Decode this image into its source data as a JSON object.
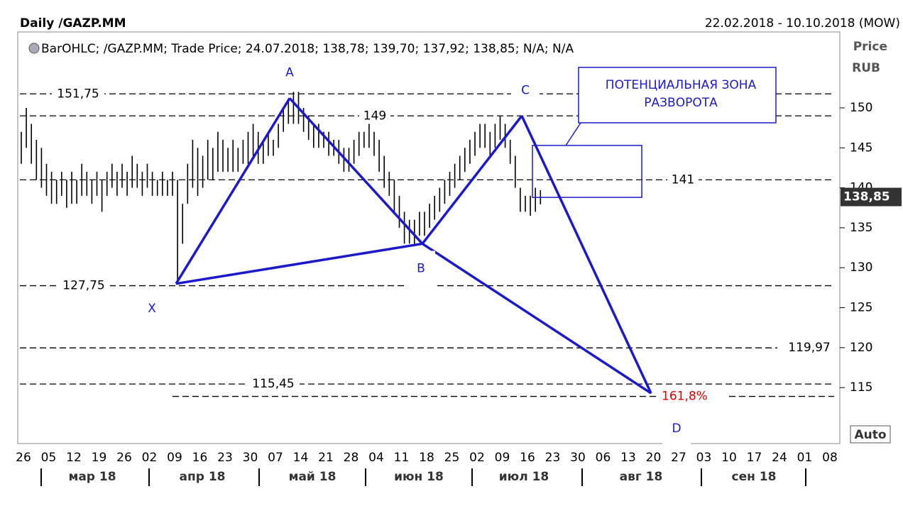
{
  "header": {
    "title": "Daily /GAZP.MM",
    "range": "22.02.2018 - 10.10.2018 (MOW)",
    "legend": "BarOHLC; /GAZP.MM; Trade Price; 24.07.2018; 138,78; 139,70; 137,92; 138,85; N/A; N/A",
    "axis_title": "Price",
    "axis_unit": "RUB",
    "auto": "Auto"
  },
  "chart_data": {
    "type": "ohlc",
    "color": "#000000",
    "highs": [
      147,
      150,
      148,
      146,
      145,
      143,
      142,
      141,
      142,
      141,
      142,
      141,
      143,
      142,
      141,
      142,
      141,
      142,
      143,
      142,
      143,
      142,
      144,
      143,
      142,
      143,
      142,
      141,
      142,
      141,
      142,
      141,
      138,
      143,
      146,
      145,
      144,
      146,
      145,
      147,
      146,
      145,
      146,
      145,
      146,
      147,
      148,
      147,
      146,
      147,
      146,
      148,
      150,
      151,
      152,
      152,
      150,
      149,
      148,
      148,
      147,
      147,
      146,
      146,
      145,
      145,
      146,
      147,
      147,
      148,
      147,
      146,
      144,
      142,
      141,
      139,
      137,
      136,
      136,
      137,
      137,
      138,
      139,
      140,
      141,
      142,
      143,
      144,
      145,
      146,
      147,
      148,
      148,
      147,
      148,
      149,
      148,
      146,
      144,
      140,
      139,
      139,
      140,
      139.7
    ],
    "lows": [
      143,
      145,
      143,
      141,
      140,
      139,
      138,
      138,
      139,
      137.5,
      138,
      138,
      139,
      139,
      138,
      139,
      137,
      139,
      140,
      139,
      140,
      139,
      140,
      140,
      139,
      140,
      139,
      139,
      139,
      139,
      139,
      128,
      133,
      138,
      140,
      139,
      140,
      141,
      141,
      142,
      142,
      142,
      142,
      142,
      143,
      143,
      144,
      143,
      143,
      144,
      144,
      145,
      147,
      148,
      148,
      148,
      147,
      146,
      145,
      145,
      145,
      144,
      144,
      143,
      142,
      142,
      143,
      144,
      145,
      145,
      144,
      142,
      140,
      139,
      137,
      135,
      133,
      133,
      133,
      134,
      134,
      135,
      136,
      137,
      138,
      139,
      140,
      141,
      142,
      143,
      144,
      145,
      145,
      144,
      145,
      146,
      145,
      143,
      140,
      137,
      137,
      136.5,
      137,
      137.92
    ],
    "ylim": [
      108,
      159.5
    ],
    "yticks": [
      115,
      120,
      125,
      130,
      135,
      140,
      145,
      150
    ],
    "week_labels": [
      "26",
      "05",
      "12",
      "19",
      "26",
      "02",
      "09",
      "16",
      "23",
      "30",
      "07",
      "14",
      "21",
      "28",
      "04",
      "11",
      "18",
      "25",
      "02",
      "09",
      "16",
      "23",
      "30",
      "06",
      "13",
      "20",
      "27",
      "03",
      "10",
      "17",
      "24",
      "01",
      "08"
    ],
    "months": [
      "мар 18",
      "апр 18",
      "май 18",
      "июн 18",
      "июл 18",
      "авг 18",
      "сен 18"
    ],
    "last_price": {
      "value": 138.85,
      "label": "138,85"
    },
    "levels": [
      {
        "value": 151.75,
        "label": "151,75"
      },
      149,
      141,
      {
        "value": 127.75,
        "label": "127,75"
      },
      {
        "value": 119.97,
        "label": "119,97"
      },
      {
        "value": 115.45,
        "label": "115,45"
      }
    ],
    "fib": {
      "label": "161,8%",
      "ratio": 161.8,
      "price": 113.9
    },
    "pattern": {
      "names": [
        "X",
        "A",
        "B",
        "C",
        "D"
      ],
      "prices": [
        128,
        151.2,
        133,
        149,
        114.3
      ]
    },
    "zone": {
      "top": 145.3,
      "bottom": 138.8,
      "text": [
        "ПОТЕНЦИАЛЬНАЯ ЗОНА",
        "РАЗВОРОТА"
      ]
    }
  }
}
